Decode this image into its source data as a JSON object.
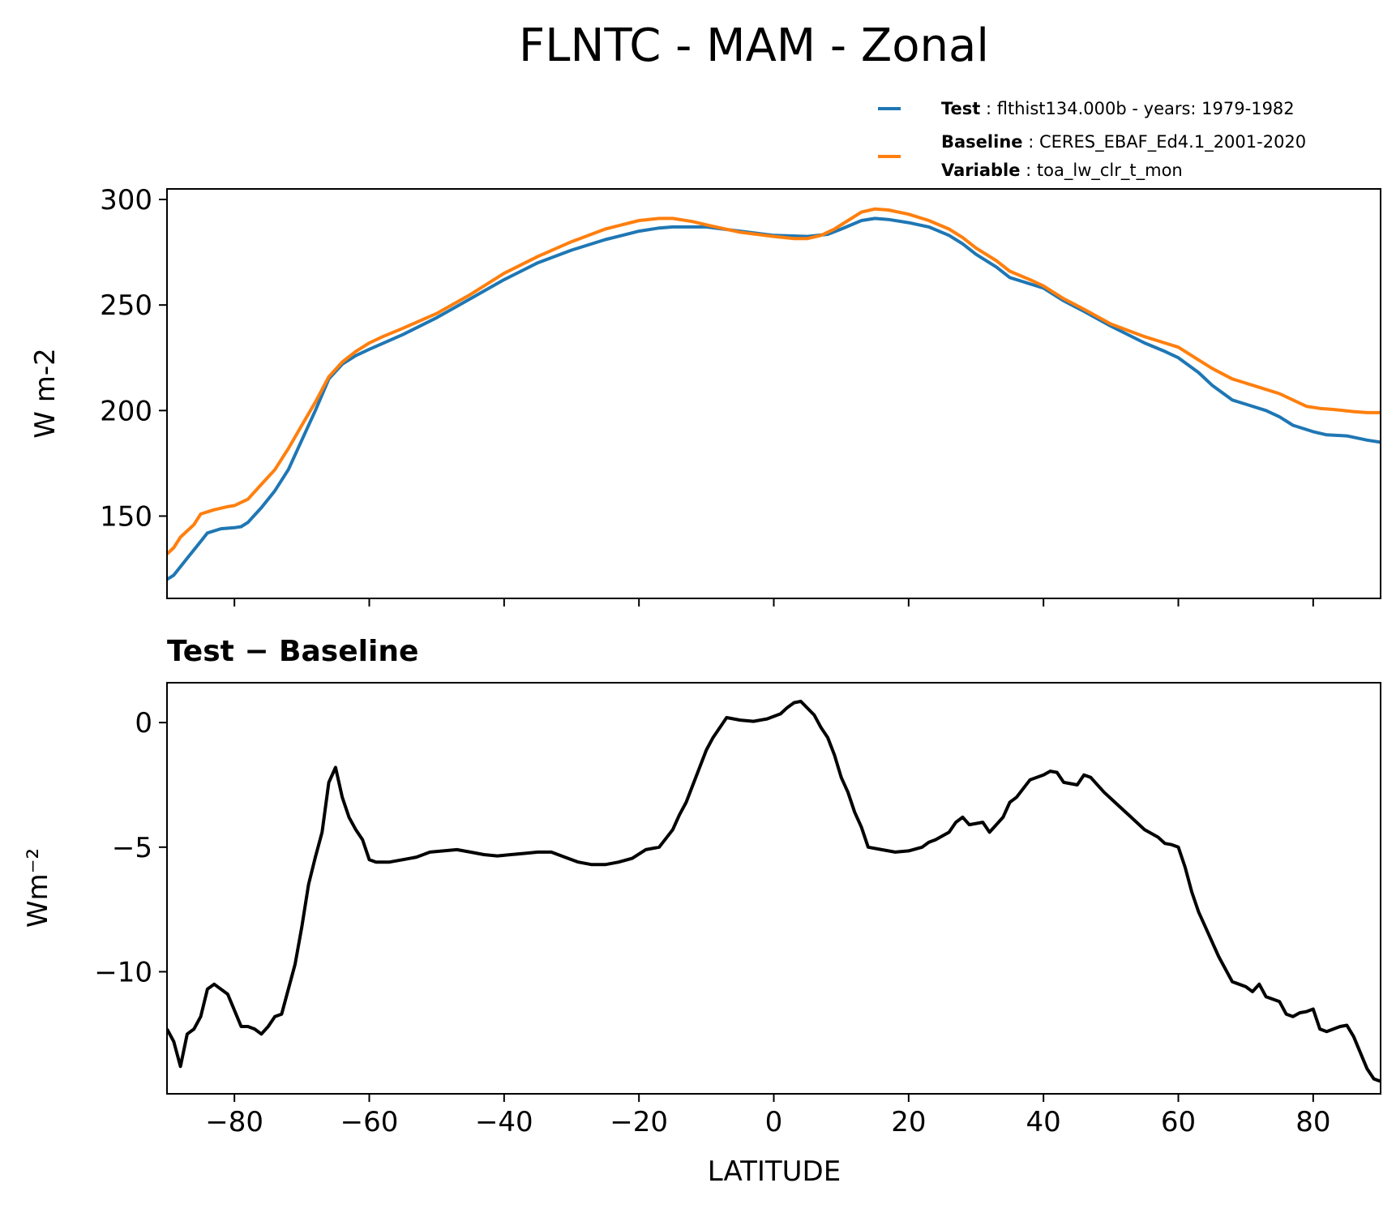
{
  "chart_data": [
    {
      "type": "line",
      "title": "FLNTC - MAM - Zonal",
      "ylabel": "W m-2",
      "xlim": [
        -90,
        90
      ],
      "ylim": [
        111,
        305
      ],
      "xticks": [
        -80,
        -60,
        -40,
        -20,
        0,
        20,
        40,
        60,
        80
      ],
      "yticks": [
        150,
        200,
        250,
        300
      ],
      "yticks_labels": [
        "150",
        "200",
        "250",
        "300"
      ],
      "legend_position": "above-right",
      "legend": [
        {
          "key": "Test",
          "value": "flthist134.000b - years: 1979-1982",
          "color": "#1f77b4"
        },
        {
          "key": "Baseline",
          "value": "CERES_EBAF_Ed4.1_2001-2020",
          "color": "#ff7f0e"
        },
        {
          "key": "Variable",
          "value": "toa_lw_clr_t_mon"
        }
      ],
      "series": [
        {
          "color": "#1f77b4",
          "points": [
            [
              -90,
              120
            ],
            [
              -89,
              122
            ],
            [
              -87,
              130
            ],
            [
              -85,
              138
            ],
            [
              -84,
              142
            ],
            [
              -82,
              144
            ],
            [
              -80,
              144.5
            ],
            [
              -79,
              145
            ],
            [
              -78,
              147
            ],
            [
              -76,
              154
            ],
            [
              -74,
              162
            ],
            [
              -72,
              172
            ],
            [
              -70,
              186
            ],
            [
              -68,
              200
            ],
            [
              -66,
              215
            ],
            [
              -64,
              222
            ],
            [
              -62,
              226
            ],
            [
              -60,
              229
            ],
            [
              -55,
              236
            ],
            [
              -50,
              244
            ],
            [
              -45,
              253
            ],
            [
              -40,
              262
            ],
            [
              -35,
              270
            ],
            [
              -30,
              276
            ],
            [
              -25,
              281
            ],
            [
              -20,
              285
            ],
            [
              -17,
              286.5
            ],
            [
              -15,
              287
            ],
            [
              -10,
              287
            ],
            [
              -5,
              285
            ],
            [
              0,
              283
            ],
            [
              5,
              282.5
            ],
            [
              8,
              283.5
            ],
            [
              10,
              286
            ],
            [
              13,
              290
            ],
            [
              15,
              291
            ],
            [
              17,
              290.5
            ],
            [
              20,
              289
            ],
            [
              23,
              287
            ],
            [
              26,
              283
            ],
            [
              28,
              279
            ],
            [
              30,
              274
            ],
            [
              33,
              268
            ],
            [
              35,
              263
            ],
            [
              37,
              261
            ],
            [
              40,
              258
            ],
            [
              43,
              252
            ],
            [
              46,
              247
            ],
            [
              50,
              240
            ],
            [
              55,
              232
            ],
            [
              58,
              228
            ],
            [
              60,
              225
            ],
            [
              63,
              218
            ],
            [
              65,
              212
            ],
            [
              68,
              205
            ],
            [
              70,
              203
            ],
            [
              73,
              200
            ],
            [
              75,
              197
            ],
            [
              77,
              193
            ],
            [
              80,
              190
            ],
            [
              82,
              188.5
            ],
            [
              85,
              188
            ],
            [
              88,
              186
            ],
            [
              90,
              185
            ]
          ]
        },
        {
          "color": "#ff7f0e",
          "points": [
            [
              -90,
              132
            ],
            [
              -89,
              135
            ],
            [
              -88,
              140
            ],
            [
              -86,
              146
            ],
            [
              -85,
              151
            ],
            [
              -83,
              153
            ],
            [
              -81,
              154.5
            ],
            [
              -80,
              155
            ],
            [
              -78,
              158
            ],
            [
              -76,
              165
            ],
            [
              -74,
              172
            ],
            [
              -72,
              182
            ],
            [
              -70,
              193
            ],
            [
              -68,
              204
            ],
            [
              -66,
              216
            ],
            [
              -64,
              223
            ],
            [
              -62,
              228
            ],
            [
              -60,
              232
            ],
            [
              -58,
              235
            ],
            [
              -55,
              239
            ],
            [
              -50,
              246
            ],
            [
              -45,
              255
            ],
            [
              -40,
              265
            ],
            [
              -35,
              273
            ],
            [
              -30,
              280
            ],
            [
              -25,
              286
            ],
            [
              -20,
              290
            ],
            [
              -17,
              291
            ],
            [
              -15,
              291
            ],
            [
              -12,
              289.5
            ],
            [
              -10,
              288
            ],
            [
              -5,
              284.5
            ],
            [
              0,
              282.5
            ],
            [
              3,
              281.5
            ],
            [
              5,
              281.5
            ],
            [
              7,
              283
            ],
            [
              9,
              286
            ],
            [
              11,
              290
            ],
            [
              13,
              294
            ],
            [
              15,
              295.5
            ],
            [
              17,
              295
            ],
            [
              20,
              293
            ],
            [
              23,
              290
            ],
            [
              26,
              286
            ],
            [
              28,
              282
            ],
            [
              30,
              277
            ],
            [
              33,
              271
            ],
            [
              35,
              266
            ],
            [
              38,
              262
            ],
            [
              40,
              259
            ],
            [
              43,
              253
            ],
            [
              46,
              248
            ],
            [
              50,
              241
            ],
            [
              55,
              235
            ],
            [
              58,
              232
            ],
            [
              60,
              230
            ],
            [
              63,
              224
            ],
            [
              65,
              220
            ],
            [
              68,
              215
            ],
            [
              70,
              213
            ],
            [
              72,
              211
            ],
            [
              75,
              208
            ],
            [
              77,
              205
            ],
            [
              79,
              202
            ],
            [
              81,
              201
            ],
            [
              83,
              200.5
            ],
            [
              86,
              199.5
            ],
            [
              88,
              199
            ],
            [
              90,
              199
            ]
          ]
        }
      ]
    },
    {
      "type": "line",
      "title": "Test − Baseline",
      "ylabel": "Wm⁻²",
      "xlabel": "LATITUDE",
      "xlim": [
        -90,
        90
      ],
      "ylim": [
        -14.9,
        1.6
      ],
      "xticks": [
        -80,
        -60,
        -40,
        -20,
        0,
        20,
        40,
        60,
        80
      ],
      "xticks_labels": [
        "−80",
        "−60",
        "−40",
        "−20",
        "0",
        "20",
        "40",
        "60",
        "80"
      ],
      "yticks": [
        -10,
        -5,
        0
      ],
      "yticks_labels": [
        "−10",
        "−5",
        "0"
      ],
      "series": [
        {
          "color": "#000000",
          "points": [
            [
              -90,
              -12.3
            ],
            [
              -89,
              -12.8
            ],
            [
              -88,
              -13.8
            ],
            [
              -87,
              -12.5
            ],
            [
              -86,
              -12.3
            ],
            [
              -85,
              -11.8
            ],
            [
              -84,
              -10.7
            ],
            [
              -83,
              -10.5
            ],
            [
              -81,
              -10.9
            ],
            [
              -79,
              -12.2
            ],
            [
              -78,
              -12.2
            ],
            [
              -77,
              -12.3
            ],
            [
              -76,
              -12.5
            ],
            [
              -75,
              -12.2
            ],
            [
              -74,
              -11.8
            ],
            [
              -73,
              -11.7
            ],
            [
              -71,
              -9.7
            ],
            [
              -70,
              -8.2
            ],
            [
              -69,
              -6.5
            ],
            [
              -68,
              -5.4
            ],
            [
              -67,
              -4.4
            ],
            [
              -66,
              -2.4
            ],
            [
              -65,
              -1.8
            ],
            [
              -64,
              -3.0
            ],
            [
              -63,
              -3.8
            ],
            [
              -62,
              -4.3
            ],
            [
              -61,
              -4.7
            ],
            [
              -60,
              -5.5
            ],
            [
              -59,
              -5.6
            ],
            [
              -57,
              -5.6
            ],
            [
              -55,
              -5.5
            ],
            [
              -53,
              -5.4
            ],
            [
              -51,
              -5.2
            ],
            [
              -49,
              -5.15
            ],
            [
              -47,
              -5.1
            ],
            [
              -45,
              -5.2
            ],
            [
              -43,
              -5.3
            ],
            [
              -41,
              -5.35
            ],
            [
              -39,
              -5.3
            ],
            [
              -37,
              -5.25
            ],
            [
              -35,
              -5.2
            ],
            [
              -33,
              -5.2
            ],
            [
              -31,
              -5.4
            ],
            [
              -29,
              -5.6
            ],
            [
              -27,
              -5.7
            ],
            [
              -25,
              -5.7
            ],
            [
              -23,
              -5.6
            ],
            [
              -21,
              -5.45
            ],
            [
              -19,
              -5.1
            ],
            [
              -17,
              -5.0
            ],
            [
              -15,
              -4.3
            ],
            [
              -14,
              -3.7
            ],
            [
              -13,
              -3.2
            ],
            [
              -12,
              -2.5
            ],
            [
              -11,
              -1.8
            ],
            [
              -10,
              -1.1
            ],
            [
              -9,
              -0.6
            ],
            [
              -8,
              -0.2
            ],
            [
              -7,
              0.2
            ],
            [
              -5,
              0.1
            ],
            [
              -3,
              0.05
            ],
            [
              -1,
              0.15
            ],
            [
              1,
              0.35
            ],
            [
              2,
              0.6
            ],
            [
              3,
              0.8
            ],
            [
              4,
              0.85
            ],
            [
              6,
              0.3
            ],
            [
              7,
              -0.2
            ],
            [
              8,
              -0.6
            ],
            [
              9,
              -1.3
            ],
            [
              10,
              -2.2
            ],
            [
              11,
              -2.8
            ],
            [
              12,
              -3.6
            ],
            [
              13,
              -4.2
            ],
            [
              14,
              -5.0
            ],
            [
              16,
              -5.1
            ],
            [
              18,
              -5.2
            ],
            [
              20,
              -5.15
            ],
            [
              22,
              -5.0
            ],
            [
              23,
              -4.8
            ],
            [
              24,
              -4.7
            ],
            [
              26,
              -4.4
            ],
            [
              27,
              -4.0
            ],
            [
              28,
              -3.8
            ],
            [
              29,
              -4.1
            ],
            [
              31,
              -4.0
            ],
            [
              32,
              -4.4
            ],
            [
              34,
              -3.8
            ],
            [
              35,
              -3.2
            ],
            [
              36,
              -3.0
            ],
            [
              38,
              -2.3
            ],
            [
              40,
              -2.1
            ],
            [
              41,
              -1.95
            ],
            [
              42,
              -2.0
            ],
            [
              43,
              -2.4
            ],
            [
              45,
              -2.5
            ],
            [
              46,
              -2.1
            ],
            [
              47,
              -2.2
            ],
            [
              49,
              -2.8
            ],
            [
              51,
              -3.3
            ],
            [
              53,
              -3.8
            ],
            [
              55,
              -4.3
            ],
            [
              57,
              -4.6
            ],
            [
              58,
              -4.85
            ],
            [
              59,
              -4.9
            ],
            [
              60,
              -5.0
            ],
            [
              61,
              -5.8
            ],
            [
              62,
              -6.8
            ],
            [
              63,
              -7.6
            ],
            [
              64,
              -8.2
            ],
            [
              66,
              -9.4
            ],
            [
              68,
              -10.4
            ],
            [
              70,
              -10.6
            ],
            [
              71,
              -10.8
            ],
            [
              72,
              -10.5
            ],
            [
              73,
              -11.0
            ],
            [
              75,
              -11.2
            ],
            [
              76,
              -11.7
            ],
            [
              77,
              -11.8
            ],
            [
              78,
              -11.65
            ],
            [
              79,
              -11.6
            ],
            [
              80,
              -11.5
            ],
            [
              81,
              -12.3
            ],
            [
              82,
              -12.4
            ],
            [
              84,
              -12.2
            ],
            [
              85,
              -12.15
            ],
            [
              86,
              -12.6
            ],
            [
              88,
              -13.9
            ],
            [
              89,
              -14.3
            ],
            [
              90,
              -14.4
            ]
          ]
        }
      ]
    }
  ]
}
